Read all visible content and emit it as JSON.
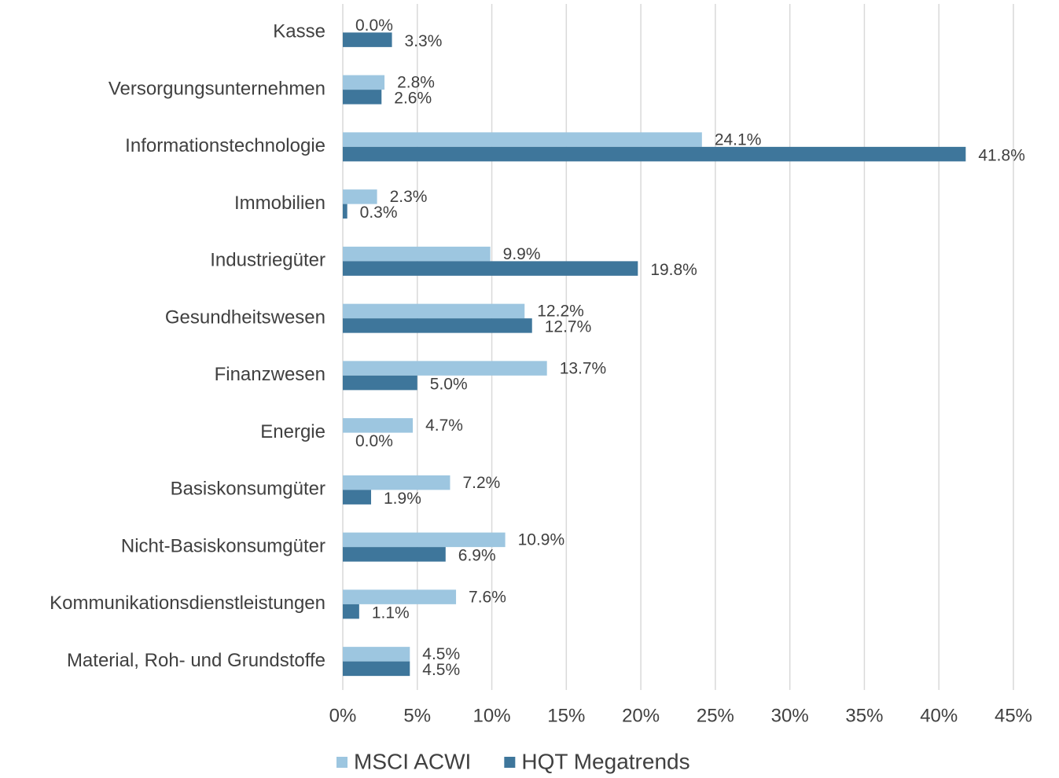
{
  "chart_data": {
    "type": "hbar",
    "categories": [
      "Kasse",
      "Versorgungsunternehmen",
      "Informationstechnologie",
      "Immobilien",
      "Industriegüter",
      "Gesundheitswesen",
      "Finanzwesen",
      "Energie",
      "Basiskonsumgüter",
      "Nicht-Basiskonsumgüter",
      "Kommunikationsdienstleistungen",
      "Material, Roh- und Grundstoffe"
    ],
    "series": [
      {
        "name": "MSCI ACWI",
        "color": "#9dc6e0",
        "values": [
          0.0,
          2.8,
          24.1,
          2.3,
          9.9,
          12.2,
          13.7,
          4.7,
          7.2,
          10.9,
          7.6,
          4.5
        ],
        "value_labels": [
          "0.0%",
          "2.8%",
          "24.1%",
          "2.3%",
          "9.9%",
          "12.2%",
          "13.7%",
          "4.7%",
          "7.2%",
          "10.9%",
          "7.6%",
          "4.5%"
        ]
      },
      {
        "name": "HQT Megatrends",
        "color": "#3e769b",
        "values": [
          3.3,
          2.6,
          41.8,
          0.3,
          19.8,
          12.7,
          5.0,
          0.0,
          1.9,
          6.9,
          1.1,
          4.5
        ],
        "value_labels": [
          "3.3%",
          "2.6%",
          "41.8%",
          "0.3%",
          "19.8%",
          "12.7%",
          "5.0%",
          "0.0%",
          "1.9%",
          "6.9%",
          "1.1%",
          "4.5%"
        ]
      }
    ],
    "xlim": [
      0,
      45
    ],
    "xticks": [
      {
        "value": 0,
        "label": "0%"
      },
      {
        "value": 5,
        "label": "5%"
      },
      {
        "value": 10,
        "label": "10%"
      },
      {
        "value": 15,
        "label": "15%"
      },
      {
        "value": 20,
        "label": "20%"
      },
      {
        "value": 25,
        "label": "25%"
      },
      {
        "value": 30,
        "label": "30%"
      },
      {
        "value": 35,
        "label": "35%"
      },
      {
        "value": 40,
        "label": "40%"
      },
      {
        "value": 45,
        "label": "45%"
      }
    ],
    "grid": true
  }
}
